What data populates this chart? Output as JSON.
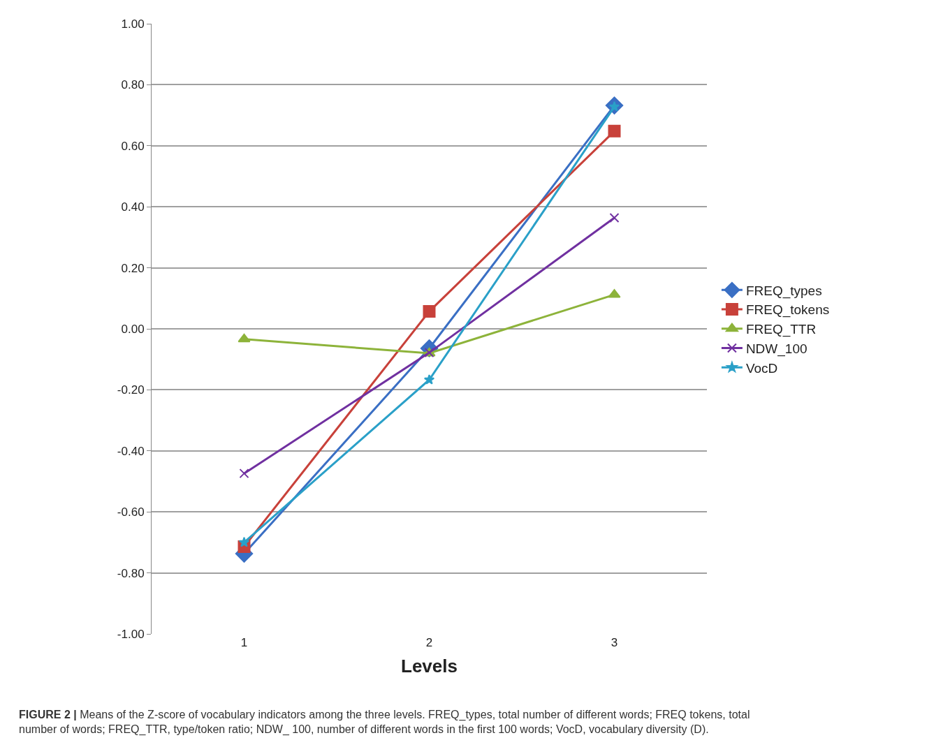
{
  "chart_data": {
    "type": "line",
    "xlabel": "Levels",
    "categories": [
      "1",
      "2",
      "3"
    ],
    "series": [
      {
        "name": "FREQ_types",
        "color": "#3a6fc4",
        "marker": "diamond",
        "values": [
          -0.737,
          -0.064,
          0.732
        ]
      },
      {
        "name": "FREQ_tokens",
        "color": "#c8413a",
        "marker": "square",
        "values": [
          -0.714,
          0.057,
          0.648
        ]
      },
      {
        "name": "FREQ_TTR",
        "color": "#8db33a",
        "marker": "triangle",
        "values": [
          -0.034,
          -0.08,
          0.112
        ]
      },
      {
        "name": "NDW_100",
        "color": "#7030a0",
        "marker": "cross",
        "values": [
          -0.474,
          -0.078,
          0.364
        ]
      },
      {
        "name": "VocD",
        "color": "#2aa0c8",
        "marker": "star",
        "values": [
          -0.7,
          -0.167,
          0.728
        ]
      }
    ],
    "ylim": [
      -1.0,
      1.0
    ],
    "yticks": [
      {
        "value": -1.0,
        "label": "-1.00"
      },
      {
        "value": -0.8,
        "label": "-0.80"
      },
      {
        "value": -0.6,
        "label": "-0.60"
      },
      {
        "value": -0.4,
        "label": "-0.40"
      },
      {
        "value": -0.2,
        "label": "-0.20"
      },
      {
        "value": 0,
        "label": "0.00"
      },
      {
        "value": 0.2,
        "label": "0.20"
      },
      {
        "value": 0.4,
        "label": "0.40"
      },
      {
        "value": 0.6,
        "label": "0.60"
      },
      {
        "value": 0.8,
        "label": "0.80"
      },
      {
        "value": 1.0,
        "label": "1.00"
      }
    ],
    "grid": "y",
    "legend": "right",
    "line_style": "solid",
    "annotations": [
      "FIGURE 2 | Means of the Z-score of vocabulary indicators among the three levels. FREQ_types, total number of different words; FREQ tokens, total number of words; FREQ_TTR, type/token ratio; NDW_ 100, number of different words in the first 100 words; VocD, vocabulary diversity (D)."
    ]
  }
}
